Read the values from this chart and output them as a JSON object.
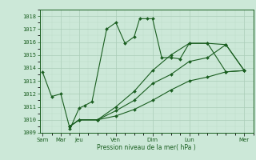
{
  "title": "Pression niveau de la mer( hPa )",
  "bg_color": "#cce8d8",
  "grid_major_color": "#aaccb8",
  "grid_minor_color": "#bbddc8",
  "line_color": "#1a5e20",
  "ylim": [
    1009,
    1018.5
  ],
  "yticks": [
    1009,
    1010,
    1011,
    1012,
    1013,
    1014,
    1015,
    1016,
    1017,
    1018
  ],
  "xlim": [
    -0.15,
    11.5
  ],
  "major_xtick_positions": [
    0,
    1,
    2,
    4,
    6,
    8,
    11
  ],
  "major_xtick_labels": [
    "Sam",
    "Mar",
    "Jeu",
    "Ven",
    "Dim",
    "Lun",
    "Mer"
  ],
  "series": [
    {
      "x": [
        0,
        0.5,
        1.0,
        1.5,
        2.0,
        2.3,
        2.7,
        3.5,
        4.0,
        4.5,
        5.0,
        5.3,
        5.7,
        6.0,
        6.5,
        7.0,
        7.5,
        8.0,
        9.0,
        10.0,
        11.0
      ],
      "y": [
        1013.7,
        1011.8,
        1012.0,
        1009.3,
        1010.9,
        1011.1,
        1011.4,
        1017.0,
        1017.5,
        1015.9,
        1016.4,
        1017.8,
        1017.8,
        1017.8,
        1014.8,
        1014.8,
        1014.7,
        1015.9,
        1015.9,
        1013.7,
        1013.8
      ]
    },
    {
      "x": [
        1.5,
        2.0,
        3.0,
        4.0,
        5.0,
        6.0,
        7.0,
        8.0,
        9.0,
        10.0,
        11.0
      ],
      "y": [
        1009.5,
        1010.0,
        1010.0,
        1010.3,
        1010.8,
        1011.5,
        1012.3,
        1013.0,
        1013.3,
        1013.7,
        1013.8
      ]
    },
    {
      "x": [
        1.5,
        2.0,
        3.0,
        4.0,
        5.0,
        6.0,
        7.0,
        8.0,
        9.0,
        10.0,
        11.0
      ],
      "y": [
        1009.5,
        1010.0,
        1010.0,
        1010.7,
        1011.5,
        1012.8,
        1013.5,
        1014.5,
        1014.8,
        1015.8,
        1013.8
      ]
    },
    {
      "x": [
        1.5,
        2.0,
        3.0,
        4.0,
        5.0,
        6.0,
        7.0,
        8.0,
        9.0,
        10.0,
        11.0
      ],
      "y": [
        1009.5,
        1010.0,
        1010.0,
        1011.0,
        1012.2,
        1013.8,
        1015.0,
        1015.9,
        1015.9,
        1015.8,
        1013.8
      ]
    }
  ]
}
